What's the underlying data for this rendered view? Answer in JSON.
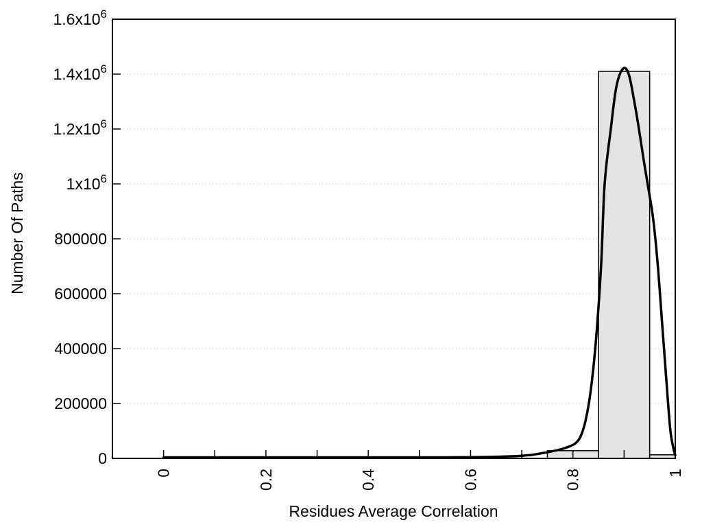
{
  "page": {
    "background": "#ffffff"
  },
  "chart_data": {
    "type": "bar",
    "subtype": "histogram-with-fit-curve",
    "title": "",
    "xlabel": "Residues Average Correlation",
    "ylabel": "Number Of Paths",
    "xlim": [
      -0.1,
      1.0
    ],
    "ylim": [
      0,
      1600000
    ],
    "grid": "horizontal-dotted",
    "legend": "none",
    "xticks": [
      {
        "value": 0.0,
        "label": "0"
      },
      {
        "value": 0.1,
        "label": ""
      },
      {
        "value": 0.2,
        "label": "0.2"
      },
      {
        "value": 0.3,
        "label": ""
      },
      {
        "value": 0.4,
        "label": "0.4"
      },
      {
        "value": 0.5,
        "label": ""
      },
      {
        "value": 0.6,
        "label": "0.6"
      },
      {
        "value": 0.7,
        "label": ""
      },
      {
        "value": 0.8,
        "label": "0.8"
      },
      {
        "value": 0.9,
        "label": ""
      },
      {
        "value": 1.0,
        "label": "1"
      }
    ],
    "yticks": [
      {
        "value": 0,
        "label": "0"
      },
      {
        "value": 200000,
        "label": "200000"
      },
      {
        "value": 400000,
        "label": "400000"
      },
      {
        "value": 600000,
        "label": "600000"
      },
      {
        "value": 800000,
        "label": "800000"
      },
      {
        "value": 1000000,
        "label": "1x10^6"
      },
      {
        "value": 1200000,
        "label": "1.2x10^6"
      },
      {
        "value": 1400000,
        "label": "1.4x10^6"
      },
      {
        "value": 1600000,
        "label": "1.6x10^6"
      }
    ],
    "bars": [
      {
        "x0": 0.75,
        "x1": 0.85,
        "value": 28000
      },
      {
        "x0": 0.85,
        "x1": 0.95,
        "value": 1410000
      },
      {
        "x0": 0.95,
        "x1": 1.0,
        "value": 13000
      }
    ],
    "curve": {
      "name": "smoothed-frequency-fit",
      "points": [
        [
          0.0,
          1500
        ],
        [
          0.05,
          1500
        ],
        [
          0.1,
          1500
        ],
        [
          0.15,
          1500
        ],
        [
          0.2,
          1500
        ],
        [
          0.25,
          1500
        ],
        [
          0.3,
          1600
        ],
        [
          0.35,
          1800
        ],
        [
          0.4,
          2100
        ],
        [
          0.45,
          2500
        ],
        [
          0.5,
          3000
        ],
        [
          0.55,
          3600
        ],
        [
          0.6,
          4500
        ],
        [
          0.64,
          5500
        ],
        [
          0.68,
          7500
        ],
        [
          0.7,
          9500
        ],
        [
          0.72,
          13000
        ],
        [
          0.74,
          19000
        ],
        [
          0.76,
          26000
        ],
        [
          0.78,
          35000
        ],
        [
          0.795,
          45000
        ],
        [
          0.805,
          55000
        ],
        [
          0.815,
          80000
        ],
        [
          0.825,
          140000
        ],
        [
          0.835,
          250000
        ],
        [
          0.845,
          430000
        ],
        [
          0.855,
          700000
        ],
        [
          0.862,
          1000000
        ],
        [
          0.874,
          1200000
        ],
        [
          0.885,
          1355000
        ],
        [
          0.898,
          1420000
        ],
        [
          0.909,
          1400000
        ],
        [
          0.919,
          1310000
        ],
        [
          0.929,
          1200000
        ],
        [
          0.938,
          1090000
        ],
        [
          0.946,
          1000000
        ],
        [
          0.957,
          870000
        ],
        [
          0.966,
          700000
        ],
        [
          0.974,
          500000
        ],
        [
          0.982,
          300000
        ],
        [
          0.99,
          110000
        ],
        [
          0.996,
          40000
        ],
        [
          1.0,
          12000
        ]
      ]
    },
    "colors": {
      "bar_fill": "#e3e3e3",
      "bar_border": "#000000",
      "curve": "#000000",
      "grid": "#b4b4b4",
      "axis": "#000000",
      "text": "#000000"
    }
  }
}
